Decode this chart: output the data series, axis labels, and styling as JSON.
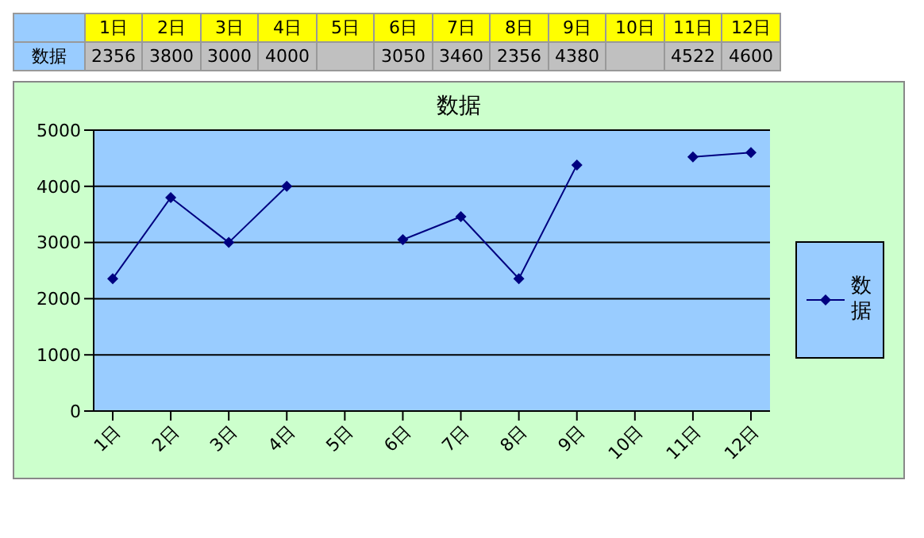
{
  "chart_data": {
    "type": "line",
    "title": "数据",
    "categories": [
      "1日",
      "2日",
      "3日",
      "4日",
      "5日",
      "6日",
      "7日",
      "8日",
      "9日",
      "10日",
      "11日",
      "12日"
    ],
    "series": [
      {
        "name": "数据",
        "color": "#000080",
        "values": [
          2356,
          3800,
          3000,
          4000,
          null,
          3050,
          3460,
          2356,
          4380,
          null,
          4522,
          4600
        ],
        "value_labels": [
          "2356",
          "3800",
          "3000",
          "4000",
          null,
          "3050",
          "3460",
          "2356",
          "4380",
          null,
          "4522",
          "4600"
        ]
      }
    ],
    "ylim": [
      0,
      5000
    ],
    "yticks": [
      0,
      1000,
      2000,
      3000,
      4000,
      5000
    ],
    "grid": "y",
    "legend": "right",
    "marker": "diamond",
    "line_style": "solid"
  }
}
